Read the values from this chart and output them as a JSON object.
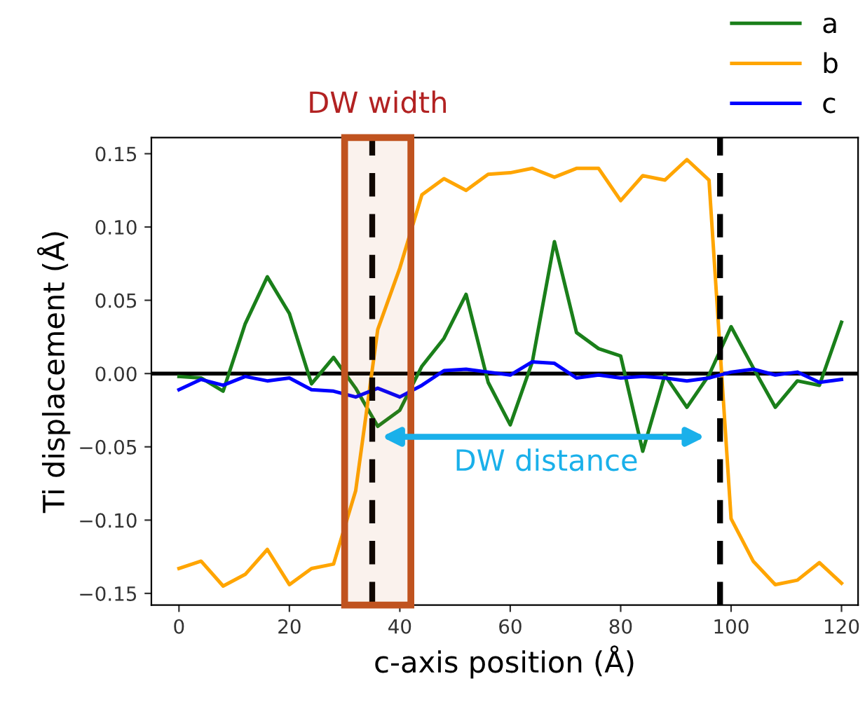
{
  "chart_data": {
    "type": "line",
    "xlabel": "c-axis position (Å)",
    "ylabel": "Ti displacement (Å)",
    "x": [
      0,
      4,
      8,
      12,
      16,
      20,
      24,
      28,
      32,
      36,
      40,
      44,
      48,
      52,
      56,
      60,
      64,
      68,
      72,
      76,
      80,
      84,
      88,
      92,
      96,
      100,
      104,
      108,
      112,
      116,
      120
    ],
    "series": [
      {
        "name": "a",
        "color": "#1a7f1a",
        "values": [
          -0.002,
          -0.003,
          -0.012,
          0.034,
          0.066,
          0.041,
          -0.007,
          0.011,
          -0.01,
          -0.036,
          -0.025,
          0.005,
          0.024,
          0.054,
          -0.006,
          -0.035,
          0.008,
          0.09,
          0.028,
          0.017,
          0.012,
          -0.053,
          -0.001,
          -0.023,
          -0.001,
          0.032,
          0.004,
          -0.023,
          -0.005,
          -0.008,
          0.035
        ]
      },
      {
        "name": "b",
        "color": "#ffa500",
        "values": [
          -0.133,
          -0.128,
          -0.145,
          -0.137,
          -0.12,
          -0.144,
          -0.133,
          -0.13,
          -0.08,
          0.03,
          0.072,
          0.122,
          0.133,
          0.125,
          0.136,
          0.137,
          0.14,
          0.134,
          0.14,
          0.14,
          0.118,
          0.135,
          0.132,
          0.146,
          0.132,
          -0.099,
          -0.128,
          -0.144,
          -0.141,
          -0.129,
          -0.143
        ]
      },
      {
        "name": "c",
        "color": "#0000ff",
        "values": [
          -0.011,
          -0.004,
          -0.008,
          -0.002,
          -0.005,
          -0.003,
          -0.011,
          -0.012,
          -0.016,
          -0.01,
          -0.016,
          -0.008,
          0.002,
          0.003,
          0.001,
          -0.001,
          0.008,
          0.007,
          -0.003,
          -0.001,
          -0.003,
          -0.002,
          -0.003,
          -0.005,
          -0.003,
          0.001,
          0.003,
          -0.001,
          0.001,
          -0.006,
          -0.004
        ]
      }
    ],
    "xlim": [
      -5,
      123
    ],
    "ylim": [
      -0.158,
      0.161
    ],
    "xticks": [
      0,
      20,
      40,
      60,
      80,
      100,
      120
    ],
    "yticks": [
      {
        "value": -0.15,
        "label": "−0.15"
      },
      {
        "value": -0.1,
        "label": "−0.10"
      },
      {
        "value": -0.05,
        "label": "−0.05"
      },
      {
        "value": 0,
        "label": "0.00"
      },
      {
        "value": 0.05,
        "label": "0.05"
      },
      {
        "value": 0.1,
        "label": "0.10"
      },
      {
        "value": 0.15,
        "label": "0.15"
      }
    ],
    "ref_lines": [
      {
        "axis": "y",
        "value": 0,
        "color": "#000000",
        "line_style": "solid"
      },
      {
        "axis": "x",
        "value": 35,
        "color": "#000000",
        "line_style": "dashed"
      },
      {
        "axis": "x",
        "value": 98,
        "color": "#000000",
        "line_style": "dashed"
      }
    ],
    "bands": [
      {
        "axis": "x",
        "from": 30,
        "to": 42,
        "label": "DW width",
        "color": "#c0531f"
      }
    ],
    "annotations": [
      "DW distance"
    ],
    "legend": "top right",
    "grid": false,
    "marker": "none",
    "line_style": "solid"
  }
}
